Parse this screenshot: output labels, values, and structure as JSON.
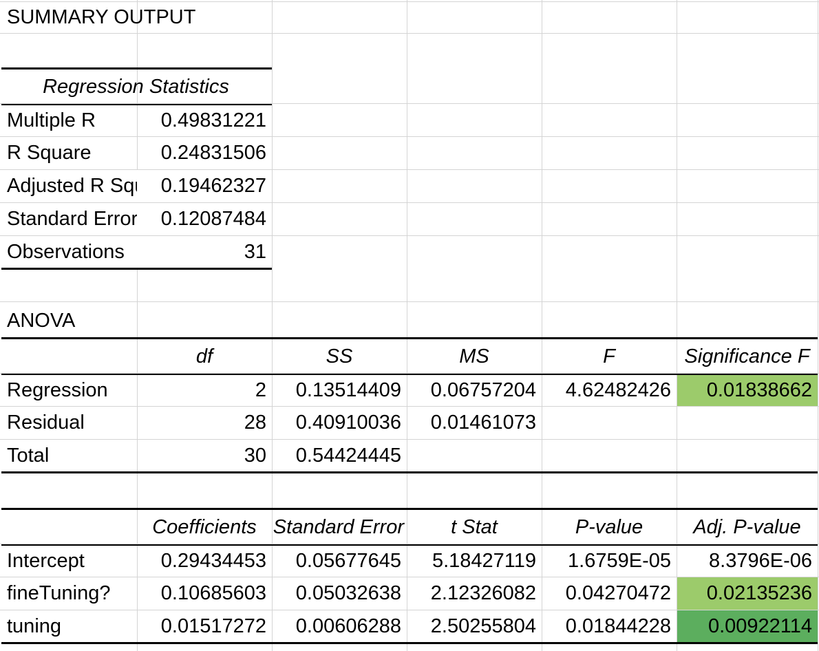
{
  "title": "SUMMARY OUTPUT",
  "regression_statistics": {
    "header": "Regression Statistics",
    "rows": [
      {
        "label": "Multiple R",
        "value": "0.49831221"
      },
      {
        "label": "R Square",
        "value": "0.24831506"
      },
      {
        "label": "Adjusted R Square",
        "value": "0.19462327"
      },
      {
        "label": "Standard Error",
        "value": "0.12087484"
      },
      {
        "label": "Observations",
        "value": "31"
      }
    ]
  },
  "anova": {
    "title": "ANOVA",
    "headers": [
      "df",
      "SS",
      "MS",
      "F",
      "Significance F"
    ],
    "rows": [
      {
        "label": "Regression",
        "cells": [
          "2",
          "0.13514409",
          "0.06757204",
          "4.62482426",
          "0.01838662"
        ]
      },
      {
        "label": "Residual",
        "cells": [
          "28",
          "0.40910036",
          "0.01461073",
          "",
          ""
        ]
      },
      {
        "label": "Total",
        "cells": [
          "30",
          "0.54424445",
          "",
          "",
          ""
        ]
      }
    ]
  },
  "coefficients": {
    "headers": [
      "Coefficients",
      "Standard Error",
      "t Stat",
      "P-value",
      "Adj. P-value"
    ],
    "rows": [
      {
        "label": "Intercept",
        "cells": [
          "0.29434453",
          "0.05677645",
          "5.18427119",
          "1.6759E-05",
          "8.3796E-06"
        ]
      },
      {
        "label": "fineTuning?",
        "cells": [
          "0.10685603",
          "0.05032638",
          "2.12326082",
          "0.04270472",
          "0.02135236"
        ]
      },
      {
        "label": "tuning",
        "cells": [
          "0.01517272",
          "0.00606288",
          "2.50255804",
          "0.01844228",
          "0.00922114"
        ]
      }
    ]
  },
  "highlights": {
    "light_green": "#9ccb6b",
    "dark_green": "#5cae5e"
  }
}
